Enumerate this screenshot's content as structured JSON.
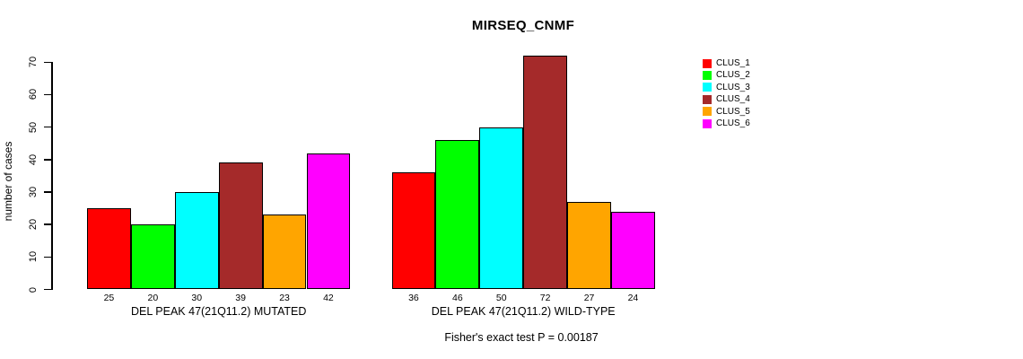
{
  "chart_data": {
    "type": "bar",
    "title": "MIRSEQ_CNMF",
    "xlabel": "",
    "ylabel": "number of cases",
    "ylim": [
      0,
      70
    ],
    "yticks": [
      0,
      10,
      20,
      30,
      40,
      50,
      60,
      70
    ],
    "grid": false,
    "legend_position": "right",
    "series_names": [
      "CLUS_1",
      "CLUS_2",
      "CLUS_3",
      "CLUS_4",
      "CLUS_5",
      "CLUS_6"
    ],
    "series_colors": [
      "#FF0000",
      "#00FF00",
      "#00FFFF",
      "#A52A2A",
      "#FFA500",
      "#FF00FF"
    ],
    "groups": [
      {
        "label": "DEL PEAK 47(21Q11.2) MUTATED",
        "values": [
          25,
          20,
          30,
          39,
          23,
          42
        ]
      },
      {
        "label": "DEL PEAK 47(21Q11.2) WILD-TYPE",
        "values": [
          36,
          46,
          50,
          72,
          27,
          24
        ]
      }
    ],
    "bar_value_labels_shown": true,
    "annotation": "Fisher's exact test P = 0.00187"
  }
}
